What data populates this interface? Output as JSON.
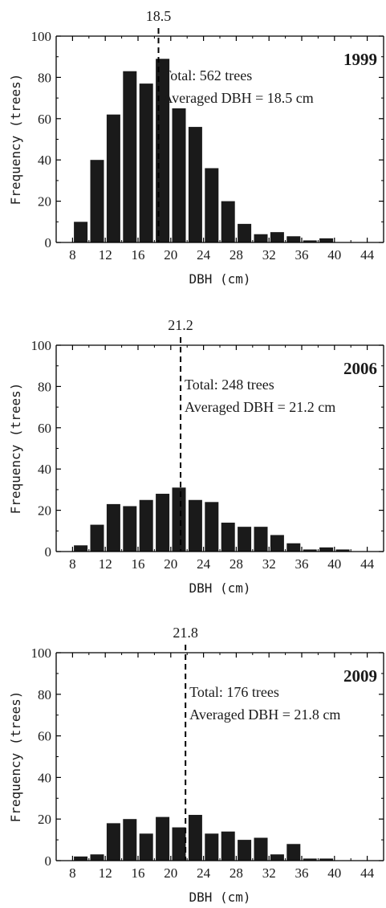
{
  "chart_data": [
    {
      "type": "bar",
      "year_label": "1999",
      "annotation_total": "Total: 562 trees",
      "annotation_avg": "Averaged DBH = 18.5 cm",
      "mean_label": "18.5",
      "mean_value": 18.5,
      "xlabel": "DBH (cm)",
      "ylabel": "Frequency (trees)",
      "xlim": [
        6,
        46
      ],
      "ylim": [
        0,
        100
      ],
      "xticks": [
        "8",
        "12",
        "16",
        "20",
        "24",
        "28",
        "32",
        "36",
        "40",
        "44"
      ],
      "yticks": [
        "0",
        "20",
        "40",
        "60",
        "80",
        "100"
      ],
      "x": [
        9,
        11,
        13,
        15,
        17,
        19,
        21,
        23,
        25,
        27,
        29,
        31,
        33,
        35,
        37,
        39
      ],
      "values": [
        10,
        40,
        62,
        83,
        77,
        89,
        65,
        56,
        36,
        20,
        9,
        4,
        5,
        3,
        1,
        2
      ]
    },
    {
      "type": "bar",
      "year_label": "2006",
      "annotation_total": "Total: 248 trees",
      "annotation_avg": "Averaged DBH = 21.2 cm",
      "mean_label": "21.2",
      "mean_value": 21.2,
      "xlabel": "DBH (cm)",
      "ylabel": "Frequency (trees)",
      "xlim": [
        6,
        46
      ],
      "ylim": [
        0,
        100
      ],
      "xticks": [
        "8",
        "12",
        "16",
        "20",
        "24",
        "28",
        "32",
        "36",
        "40",
        "44"
      ],
      "yticks": [
        "0",
        "20",
        "40",
        "60",
        "80",
        "100"
      ],
      "x": [
        9,
        11,
        13,
        15,
        17,
        19,
        21,
        23,
        25,
        27,
        29,
        31,
        33,
        35,
        37,
        39,
        41
      ],
      "values": [
        3,
        13,
        23,
        22,
        25,
        28,
        31,
        25,
        24,
        14,
        12,
        12,
        8,
        4,
        1,
        2,
        1
      ]
    },
    {
      "type": "bar",
      "year_label": "2009",
      "annotation_total": "Total: 176 trees",
      "annotation_avg": "Averaged DBH = 21.8 cm",
      "mean_label": "21.8",
      "mean_value": 21.8,
      "xlabel": "DBH (cm)",
      "ylabel": "Frequency (trees)",
      "xlim": [
        6,
        46
      ],
      "ylim": [
        0,
        100
      ],
      "xticks": [
        "8",
        "12",
        "16",
        "20",
        "24",
        "28",
        "32",
        "36",
        "40",
        "44"
      ],
      "yticks": [
        "0",
        "20",
        "40",
        "60",
        "80",
        "100"
      ],
      "x": [
        9,
        11,
        13,
        15,
        17,
        19,
        21,
        23,
        25,
        27,
        29,
        31,
        33,
        35,
        37,
        39
      ],
      "values": [
        2,
        3,
        18,
        20,
        13,
        21,
        16,
        22,
        13,
        14,
        10,
        11,
        3,
        8,
        1,
        1
      ]
    }
  ],
  "colors": {
    "bar": "#1a1a1a",
    "axis": "#000000",
    "text": "#1a1a1a"
  }
}
